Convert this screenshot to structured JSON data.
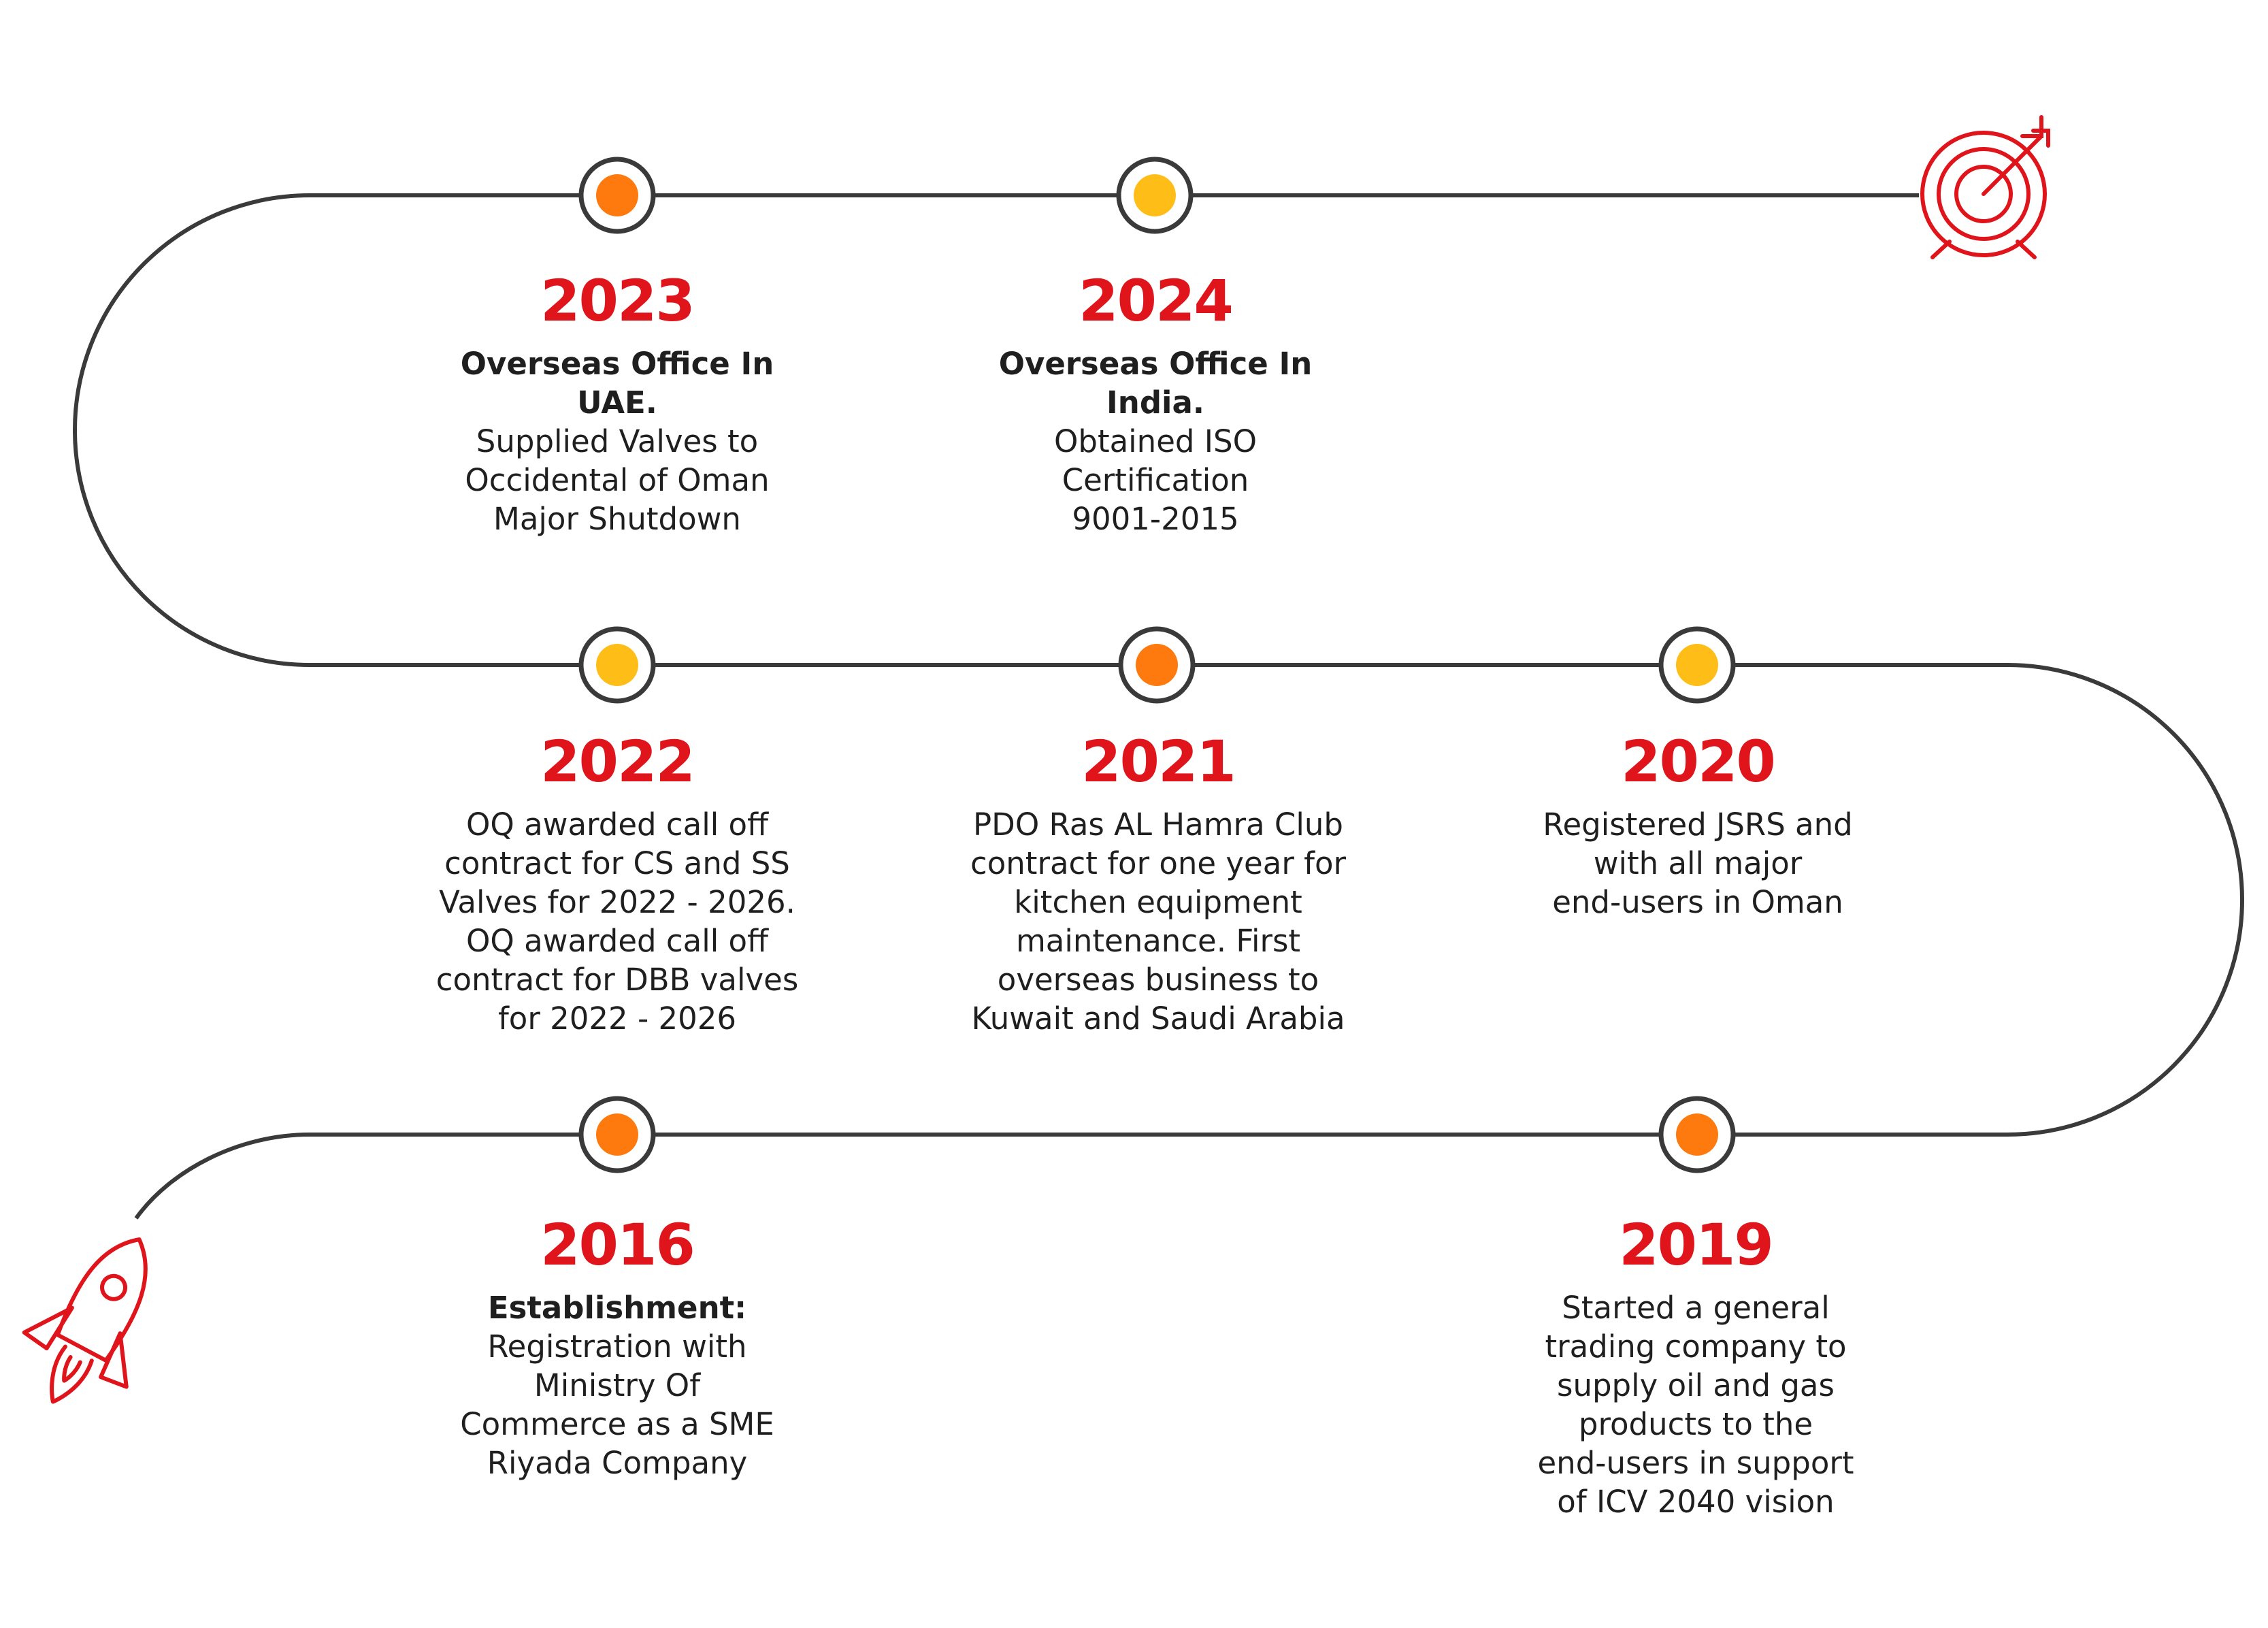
{
  "colors": {
    "path": "#3a3a3a",
    "dot_orange": "#ff7a0e",
    "dot_yellow": "#ffbe17",
    "accent_red": "#e0141b",
    "text": "#1f1f1f"
  },
  "icons": {
    "start": "rocket-icon",
    "end": "target-icon"
  },
  "milestones": [
    {
      "year": "2023",
      "lead": "Overseas Office In\nUAE.",
      "text": "Supplied Valves to\nOccidental of Oman\nMajor Shutdown",
      "dot": "orange"
    },
    {
      "year": "2024",
      "lead": "Overseas Office In\nIndia.",
      "text": "Obtained ISO\nCertification\n9001-2015",
      "dot": "yellow"
    },
    {
      "year": "2022",
      "lead": "",
      "text": "OQ awarded call off\ncontract for CS and SS\nValves for 2022 - 2026.\nOQ awarded call off\ncontract for DBB valves\nfor 2022 - 2026",
      "dot": "yellow"
    },
    {
      "year": "2021",
      "lead": "",
      "text": "PDO Ras  AL Hamra Club\ncontract for one year for\nkitchen equipment\nmaintenance. First\noverseas business to\nKuwait and Saudi Arabia",
      "dot": "orange"
    },
    {
      "year": "2020",
      "lead": "",
      "text": "Registered JSRS and\nwith all major\nend-users in Oman",
      "dot": "yellow"
    },
    {
      "year": "2016",
      "lead": "Establishment:",
      "text": "Registration with\nMinistry Of\nCommerce as a SME\nRiyada Company",
      "dot": "orange"
    },
    {
      "year": "2019",
      "lead": "",
      "text": "Started a general\ntrading company to\nsupply oil and gas\nproducts to the\nend-users in support\nof ICV 2040 vision",
      "dot": "orange"
    }
  ]
}
